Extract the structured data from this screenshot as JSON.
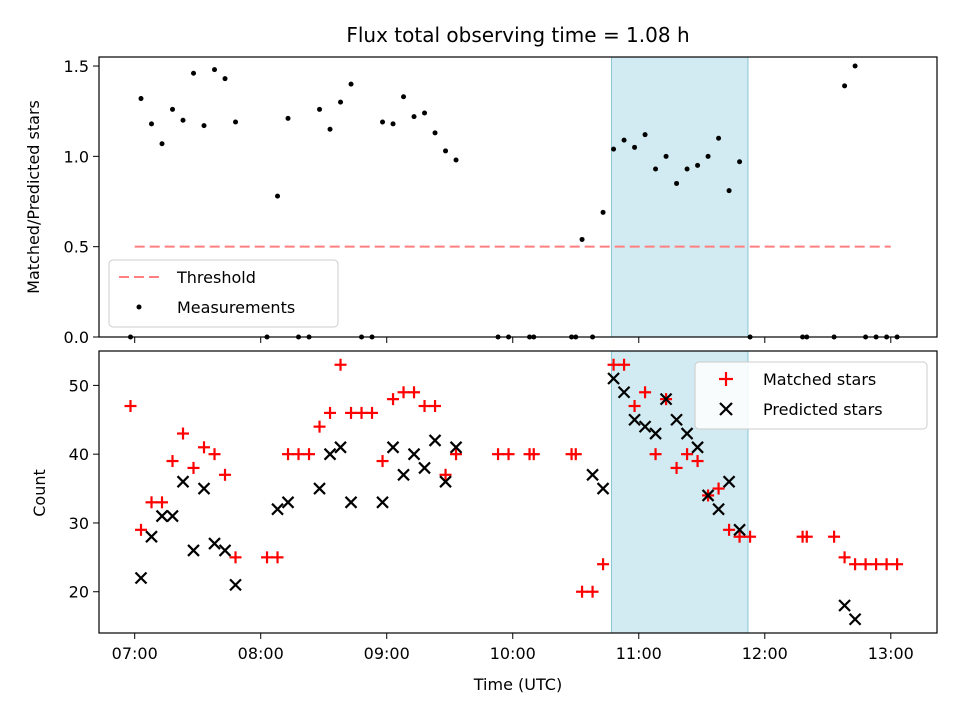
{
  "chart_data": [
    {
      "type": "scatter",
      "title": "Flux total observing time = 1.08 h",
      "xlabel": "",
      "ylabel": "Matched/Predicted stars",
      "xlim": [
        "06:43",
        "13:22"
      ],
      "ylim": [
        0,
        1.55
      ],
      "yticks": [
        "0.0",
        "0.5",
        "1.0",
        "1.5"
      ],
      "xticks": [
        "07:00",
        "08:00",
        "09:00",
        "10:00",
        "11:00",
        "12:00",
        "13:00"
      ],
      "shaded_interval": [
        "10:47",
        "11:52"
      ],
      "shade_color": "#add8e6",
      "legend": {
        "location": "lower left",
        "entries": [
          "Threshold",
          "Measurements"
        ]
      },
      "threshold": {
        "name": "Threshold",
        "value": 0.5,
        "x_range": [
          "07:00",
          "13:00"
        ],
        "color": "#ff7f7f"
      },
      "measurements": {
        "name": "Measurements",
        "color": "#000000",
        "points": [
          [
            "06:58",
            0.0
          ],
          [
            "07:03",
            1.32
          ],
          [
            "07:08",
            1.18
          ],
          [
            "07:13",
            1.07
          ],
          [
            "07:18",
            1.26
          ],
          [
            "07:23",
            1.2
          ],
          [
            "07:28",
            1.46
          ],
          [
            "07:33",
            1.17
          ],
          [
            "07:38",
            1.48
          ],
          [
            "07:43",
            1.43
          ],
          [
            "07:48",
            1.19
          ],
          [
            "08:03",
            0.0
          ],
          [
            "08:08",
            0.78
          ],
          [
            "08:13",
            1.21
          ],
          [
            "08:18",
            0.0
          ],
          [
            "08:23",
            0.0
          ],
          [
            "08:28",
            1.26
          ],
          [
            "08:33",
            1.15
          ],
          [
            "08:38",
            1.3
          ],
          [
            "08:43",
            1.4
          ],
          [
            "08:48",
            0.0
          ],
          [
            "08:53",
            0.0
          ],
          [
            "08:58",
            1.19
          ],
          [
            "09:03",
            1.18
          ],
          [
            "09:08",
            1.33
          ],
          [
            "09:13",
            1.22
          ],
          [
            "09:18",
            1.24
          ],
          [
            "09:23",
            1.13
          ],
          [
            "09:28",
            1.03
          ],
          [
            "09:33",
            0.98
          ],
          [
            "09:53",
            0.0
          ],
          [
            "09:58",
            0.0
          ],
          [
            "10:08",
            0.0
          ],
          [
            "10:10",
            0.0
          ],
          [
            "10:28",
            0.0
          ],
          [
            "10:30",
            0.0
          ],
          [
            "10:33",
            0.54
          ],
          [
            "10:38",
            0.0
          ],
          [
            "10:43",
            0.69
          ],
          [
            "10:48",
            1.04
          ],
          [
            "10:53",
            1.09
          ],
          [
            "10:58",
            1.05
          ],
          [
            "11:03",
            1.12
          ],
          [
            "11:08",
            0.93
          ],
          [
            "11:13",
            1.0
          ],
          [
            "11:18",
            0.85
          ],
          [
            "11:23",
            0.93
          ],
          [
            "11:28",
            0.95
          ],
          [
            "11:33",
            1.0
          ],
          [
            "11:38",
            1.1
          ],
          [
            "11:43",
            0.81
          ],
          [
            "11:48",
            0.97
          ],
          [
            "11:53",
            0.0
          ],
          [
            "12:18",
            0.0
          ],
          [
            "12:20",
            0.0
          ],
          [
            "12:33",
            0.0
          ],
          [
            "12:38",
            1.39
          ],
          [
            "12:43",
            1.5
          ],
          [
            "12:48",
            0.0
          ],
          [
            "12:53",
            0.0
          ],
          [
            "12:58",
            0.0
          ],
          [
            "13:03",
            0.0
          ]
        ]
      }
    },
    {
      "type": "scatter",
      "title": "",
      "xlabel": "Time (UTC)",
      "ylabel": "Count",
      "xlim": [
        "06:43",
        "13:22"
      ],
      "ylim": [
        14,
        55
      ],
      "yticks": [
        "20",
        "30",
        "40",
        "50"
      ],
      "xticks": [
        "07:00",
        "08:00",
        "09:00",
        "10:00",
        "11:00",
        "12:00",
        "13:00"
      ],
      "shaded_interval": [
        "10:47",
        "11:52"
      ],
      "shade_color": "#add8e6",
      "legend": {
        "location": "upper right",
        "entries": [
          "Matched stars",
          "Predicted stars"
        ]
      },
      "series": [
        {
          "name": "Matched stars",
          "marker": "+",
          "color": "#ff0000",
          "points": [
            [
              "06:58",
              47
            ],
            [
              "07:03",
              29
            ],
            [
              "07:08",
              33
            ],
            [
              "07:13",
              33
            ],
            [
              "07:18",
              39
            ],
            [
              "07:23",
              43
            ],
            [
              "07:28",
              38
            ],
            [
              "07:33",
              41
            ],
            [
              "07:38",
              40
            ],
            [
              "07:43",
              37
            ],
            [
              "07:48",
              25
            ],
            [
              "08:03",
              25
            ],
            [
              "08:08",
              25
            ],
            [
              "08:13",
              40
            ],
            [
              "08:18",
              40
            ],
            [
              "08:23",
              40
            ],
            [
              "08:28",
              44
            ],
            [
              "08:33",
              46
            ],
            [
              "08:38",
              53
            ],
            [
              "08:43",
              46
            ],
            [
              "08:48",
              46
            ],
            [
              "08:53",
              46
            ],
            [
              "08:58",
              39
            ],
            [
              "09:03",
              48
            ],
            [
              "09:08",
              49
            ],
            [
              "09:13",
              49
            ],
            [
              "09:18",
              47
            ],
            [
              "09:23",
              47
            ],
            [
              "09:28",
              37
            ],
            [
              "09:33",
              40
            ],
            [
              "09:53",
              40
            ],
            [
              "09:58",
              40
            ],
            [
              "10:08",
              40
            ],
            [
              "10:10",
              40
            ],
            [
              "10:28",
              40
            ],
            [
              "10:30",
              40
            ],
            [
              "10:33",
              20
            ],
            [
              "10:38",
              20
            ],
            [
              "10:43",
              24
            ],
            [
              "10:48",
              53
            ],
            [
              "10:53",
              53
            ],
            [
              "10:58",
              47
            ],
            [
              "11:03",
              49
            ],
            [
              "11:08",
              40
            ],
            [
              "11:13",
              48
            ],
            [
              "11:18",
              38
            ],
            [
              "11:23",
              40
            ],
            [
              "11:28",
              39
            ],
            [
              "11:33",
              34
            ],
            [
              "11:38",
              35
            ],
            [
              "11:43",
              29
            ],
            [
              "11:48",
              28
            ],
            [
              "11:53",
              28
            ],
            [
              "12:18",
              28
            ],
            [
              "12:20",
              28
            ],
            [
              "12:33",
              28
            ],
            [
              "12:38",
              25
            ],
            [
              "12:43",
              24
            ],
            [
              "12:48",
              24
            ],
            [
              "12:53",
              24
            ],
            [
              "12:58",
              24
            ],
            [
              "13:03",
              24
            ]
          ]
        },
        {
          "name": "Predicted stars",
          "marker": "x",
          "color": "#000000",
          "points": [
            [
              "07:03",
              22
            ],
            [
              "07:08",
              28
            ],
            [
              "07:13",
              31
            ],
            [
              "07:18",
              31
            ],
            [
              "07:23",
              36
            ],
            [
              "07:28",
              26
            ],
            [
              "07:33",
              35
            ],
            [
              "07:38",
              27
            ],
            [
              "07:43",
              26
            ],
            [
              "07:48",
              21
            ],
            [
              "08:08",
              32
            ],
            [
              "08:13",
              33
            ],
            [
              "08:28",
              35
            ],
            [
              "08:33",
              40
            ],
            [
              "08:38",
              41
            ],
            [
              "08:43",
              33
            ],
            [
              "08:58",
              33
            ],
            [
              "09:03",
              41
            ],
            [
              "09:08",
              37
            ],
            [
              "09:13",
              40
            ],
            [
              "09:18",
              38
            ],
            [
              "09:23",
              42
            ],
            [
              "09:28",
              36
            ],
            [
              "09:33",
              41
            ],
            [
              "10:38",
              37
            ],
            [
              "10:43",
              35
            ],
            [
              "10:48",
              51
            ],
            [
              "10:53",
              49
            ],
            [
              "10:58",
              45
            ],
            [
              "11:03",
              44
            ],
            [
              "11:08",
              43
            ],
            [
              "11:13",
              48
            ],
            [
              "11:18",
              45
            ],
            [
              "11:23",
              43
            ],
            [
              "11:28",
              41
            ],
            [
              "11:33",
              34
            ],
            [
              "11:38",
              32
            ],
            [
              "11:43",
              36
            ],
            [
              "11:48",
              29
            ],
            [
              "12:38",
              18
            ],
            [
              "12:43",
              16
            ]
          ]
        }
      ]
    }
  ]
}
